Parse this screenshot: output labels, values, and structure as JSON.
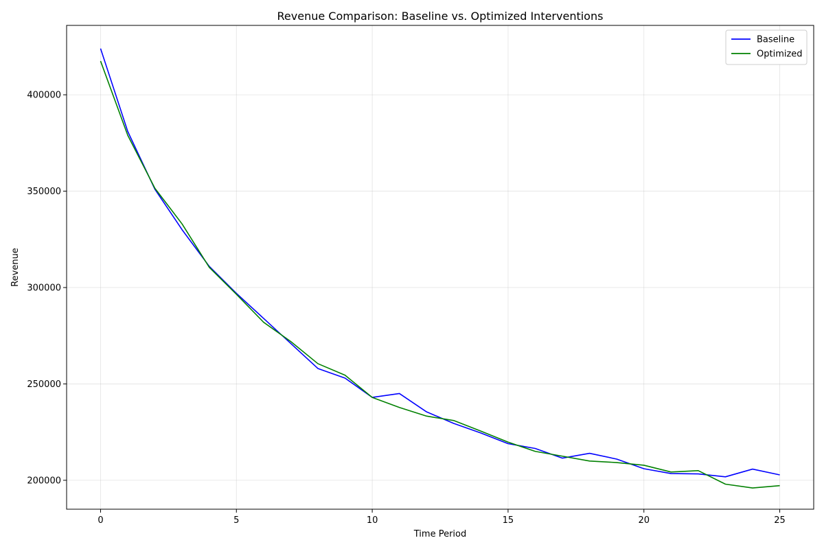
{
  "chart_data": {
    "type": "line",
    "title": "Revenue Comparison: Baseline vs. Optimized Interventions",
    "xlabel": "Time Period",
    "ylabel": "Revenue",
    "xlim": [
      -1.25,
      26.25
    ],
    "ylim": [
      185000,
      436000
    ],
    "xticks": [
      0,
      5,
      10,
      15,
      20,
      25
    ],
    "yticks": [
      200000,
      250000,
      300000,
      350000,
      400000
    ],
    "grid": true,
    "legend_position": "top-right",
    "x": [
      0,
      1,
      2,
      3,
      4,
      5,
      6,
      7,
      8,
      9,
      10,
      11,
      12,
      13,
      14,
      15,
      16,
      17,
      18,
      19,
      20,
      21,
      22,
      23,
      24,
      25
    ],
    "series": [
      {
        "name": "Baseline",
        "color": "#0000ff",
        "values": [
          424000,
          381000,
          351000,
          330000,
          311000,
          297000,
          284000,
          271000,
          258000,
          253000,
          243000,
          245000,
          235500,
          229500,
          224500,
          219000,
          216500,
          211500,
          214000,
          211000,
          206000,
          203500,
          203300,
          201800,
          205800,
          202800
        ]
      },
      {
        "name": "Optimized",
        "color": "#008000",
        "values": [
          417500,
          379000,
          351500,
          333000,
          310500,
          296500,
          282000,
          272000,
          260500,
          254500,
          243000,
          237800,
          233300,
          231000,
          225500,
          219800,
          215000,
          212500,
          210000,
          209200,
          207800,
          204300,
          205000,
          198000,
          196000,
          197200
        ]
      }
    ]
  }
}
